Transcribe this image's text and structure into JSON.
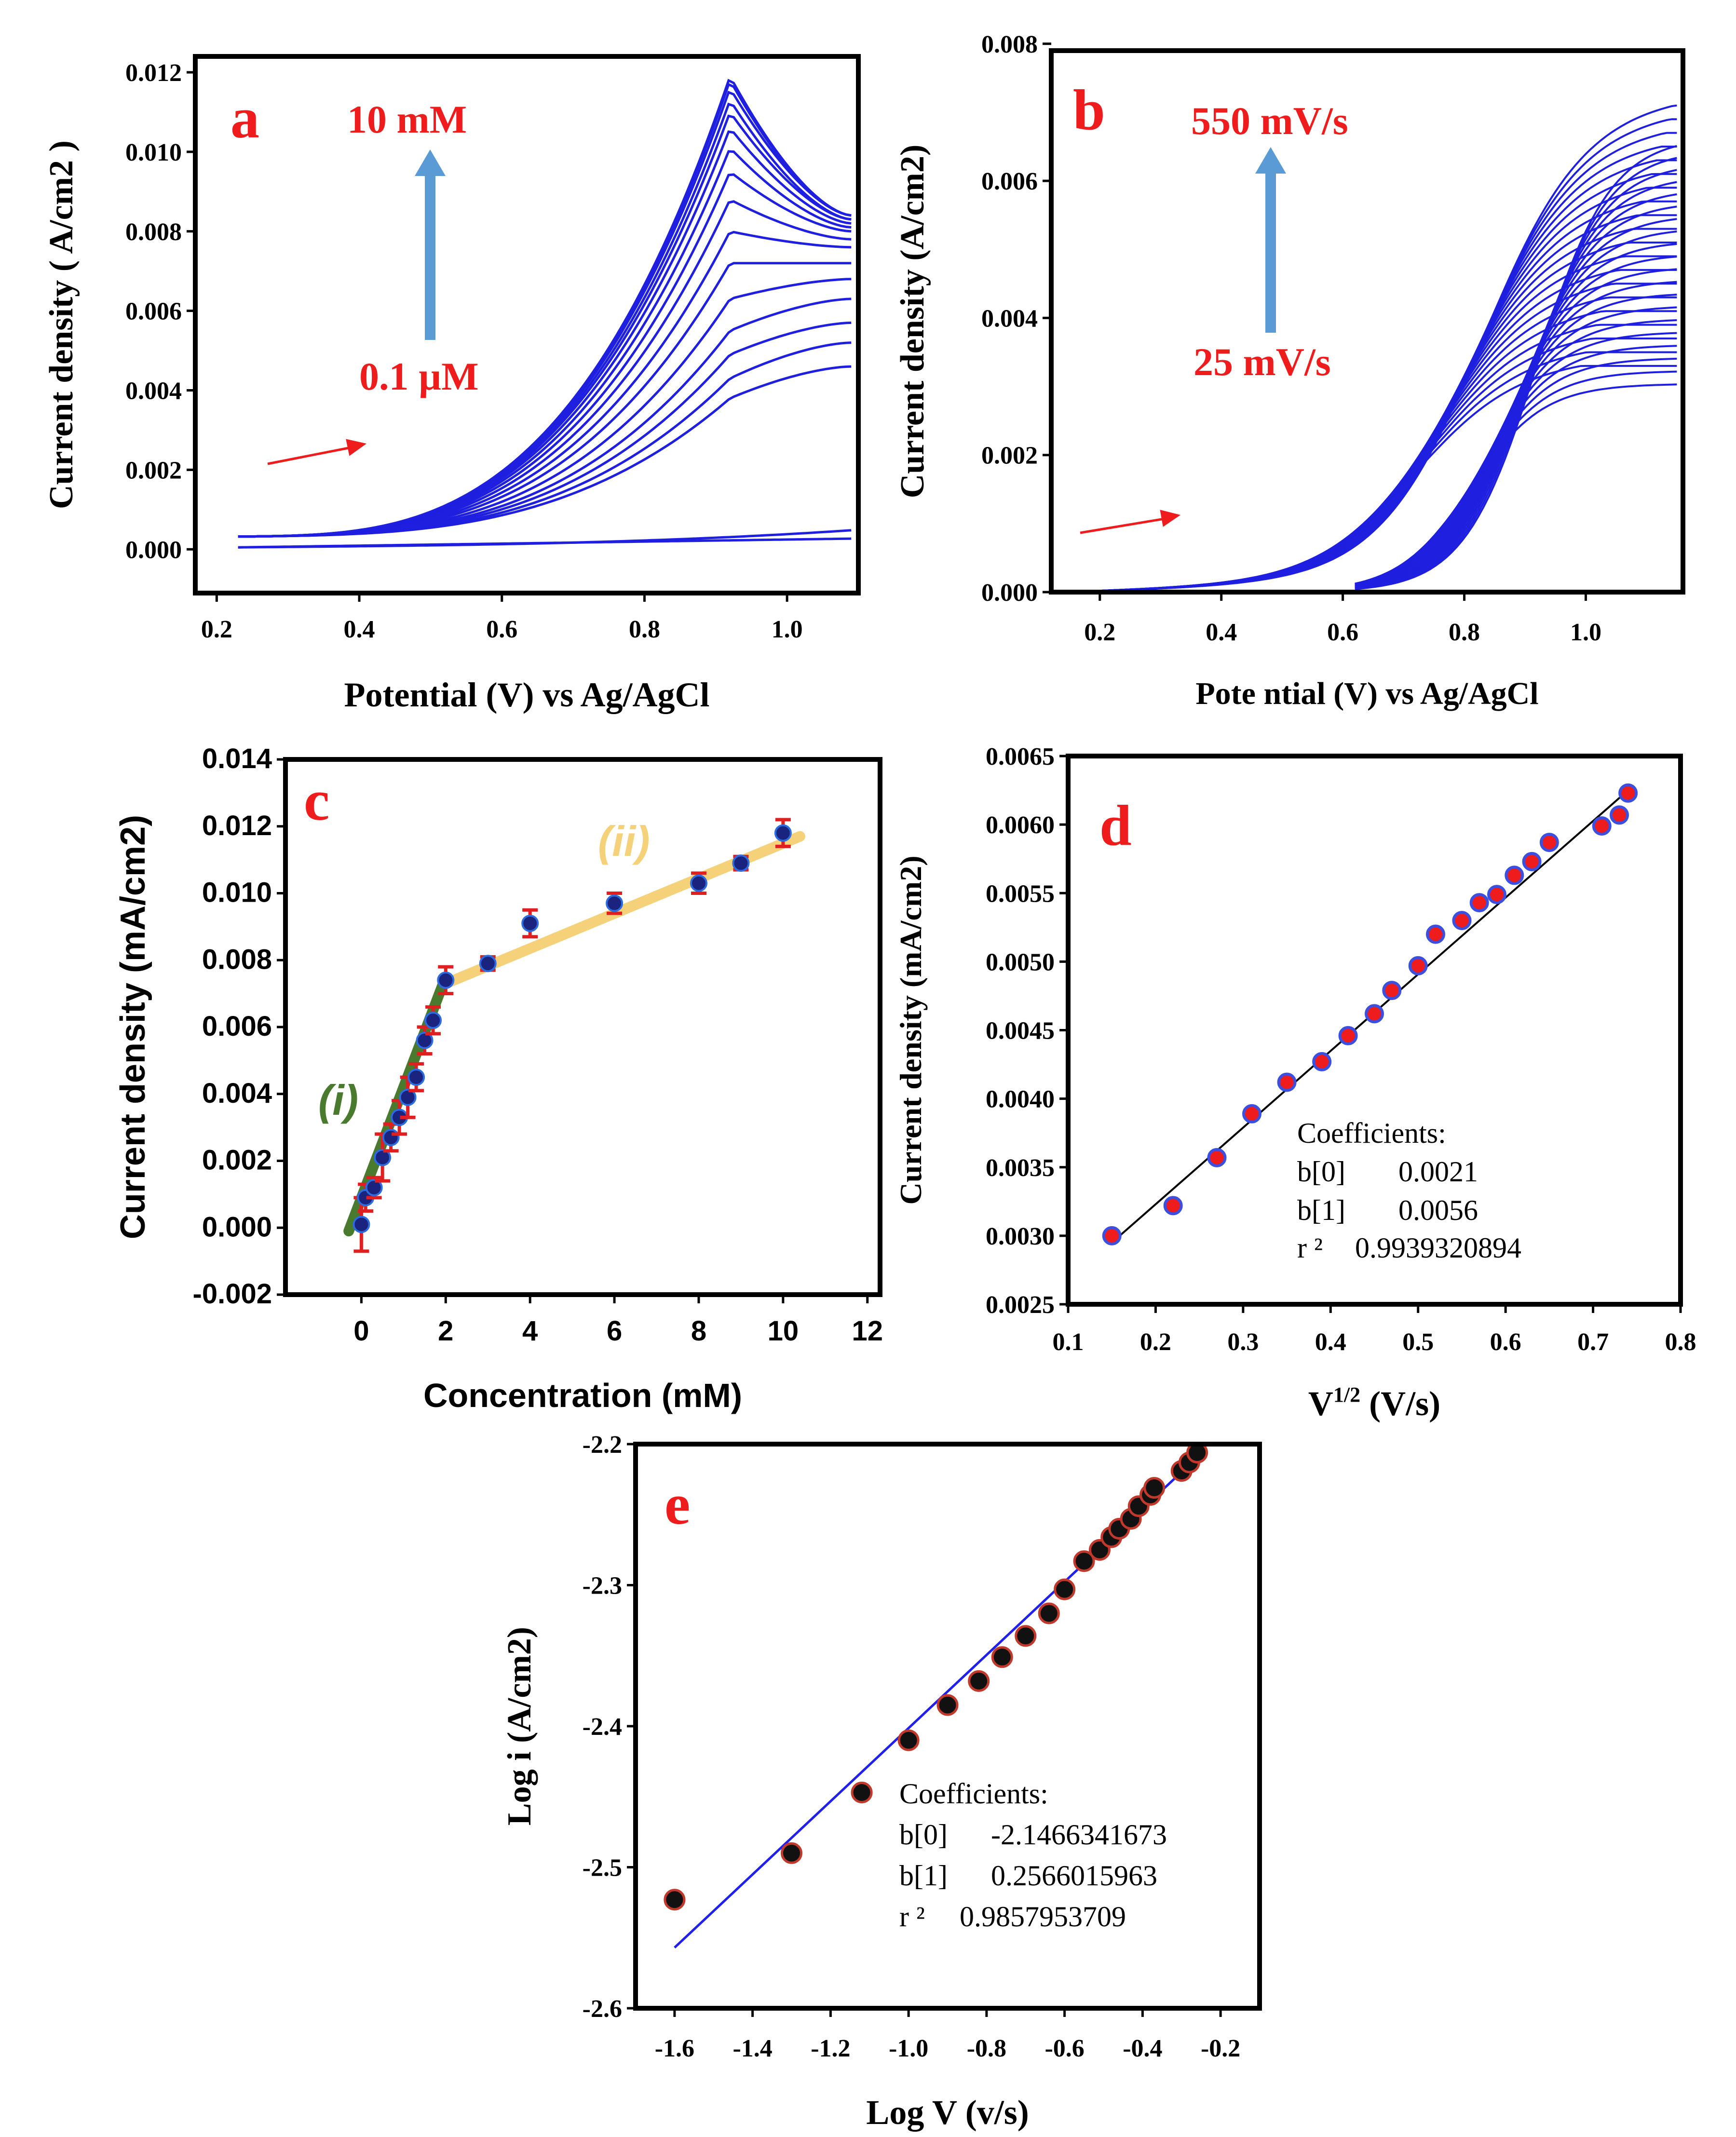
{
  "chart_data": [
    {
      "panel": "a",
      "type": "line",
      "title": "",
      "xlabel": "Potential (V) vs Ag/AgCl",
      "ylabel": "Current density ( A/cm2 )",
      "xlim": [
        0.17,
        1.1
      ],
      "ylim": [
        -0.0011,
        0.0124
      ],
      "xticks": [
        "0.2",
        "0.4",
        "0.6",
        "0.8",
        "1.0"
      ],
      "yticks": [
        "0.000",
        "0.002",
        "0.004",
        "0.006",
        "0.008",
        "0.010",
        "0.012"
      ],
      "annotations": {
        "panel_label": "a",
        "top": "10 mM",
        "bottom": "0.1 µM"
      },
      "color": "#1f1fe0",
      "series": {
        "x_start": 0.23,
        "x_end": 1.09,
        "peak_x": 0.92,
        "peak_currents": [
          0.00018,
          0.00027,
          0.0038,
          0.0043,
          0.0049,
          0.0055,
          0.0063,
          0.0072,
          0.008,
          0.0088,
          0.0095,
          0.0101,
          0.0106,
          0.011,
          0.0113,
          0.0116,
          0.0118,
          0.0119
        ],
        "end_currents": [
          0.00095,
          0.0006,
          0.0046,
          0.0052,
          0.0057,
          0.0063,
          0.0068,
          0.0072,
          0.0076,
          0.0078,
          0.008,
          0.0081,
          0.0082,
          0.0083,
          0.0083,
          0.0084,
          0.0084,
          0.0084
        ]
      }
    },
    {
      "panel": "b",
      "type": "line",
      "title": "",
      "xlabel": "Pote ntial (V) vs Ag/AgCl",
      "ylabel": "Current density (A/cm2)",
      "xlim": [
        0.12,
        1.16
      ],
      "ylim": [
        0,
        0.0079
      ],
      "xticks": [
        "0.2",
        "0.4",
        "0.6",
        "0.8",
        "1.0"
      ],
      "yticks": [
        "0.000",
        "0.002",
        "0.004",
        "0.006",
        "0.008"
      ],
      "annotations": {
        "panel_label": "b",
        "top": "550 mV/s",
        "bottom": "25 mV/s"
      },
      "color": "#1f1fe0",
      "series": {
        "x_start": 0.15,
        "x_end": 1.15,
        "plateau_currents": [
          0.0032,
          0.0034,
          0.0036,
          0.0038,
          0.004,
          0.0042,
          0.0044,
          0.0046,
          0.0048,
          0.005,
          0.0052,
          0.0054,
          0.0056,
          0.0058,
          0.006,
          0.0062,
          0.0064,
          0.0066,
          0.0068,
          0.007
        ]
      }
    },
    {
      "panel": "c",
      "type": "scatter",
      "title": "",
      "xlabel": "Concentration (mM)",
      "ylabel": "Current density (mA/cm2)",
      "xlim": [
        -1.8,
        12.3
      ],
      "ylim": [
        -0.002,
        0.014
      ],
      "xticks": [
        "0",
        "2",
        "4",
        "6",
        "8",
        "10",
        "12"
      ],
      "yticks": [
        "-0.002",
        "0.000",
        "0.002",
        "0.004",
        "0.006",
        "0.008",
        "0.010",
        "0.012",
        "0.014"
      ],
      "annotations": {
        "panel_label": "c",
        "region_i": "(i)",
        "region_ii": "(ii)"
      },
      "points": [
        {
          "x": 0.0,
          "y": 0.0001,
          "err": 0.0008
        },
        {
          "x": 0.1,
          "y": 0.0009,
          "err": 0.0004
        },
        {
          "x": 0.3,
          "y": 0.0012,
          "err": 0.0003
        },
        {
          "x": 0.5,
          "y": 0.0021,
          "err": 0.0007
        },
        {
          "x": 0.7,
          "y": 0.0027,
          "err": 0.0004
        },
        {
          "x": 0.9,
          "y": 0.0033,
          "err": 0.0005
        },
        {
          "x": 1.1,
          "y": 0.0039,
          "err": 0.0006
        },
        {
          "x": 1.3,
          "y": 0.0045,
          "err": 0.0004
        },
        {
          "x": 1.5,
          "y": 0.0056,
          "err": 0.0004
        },
        {
          "x": 1.7,
          "y": 0.0062,
          "err": 0.0004
        },
        {
          "x": 2.0,
          "y": 0.0074,
          "err": 0.0004
        },
        {
          "x": 3.0,
          "y": 0.0079,
          "err": 0.0002
        },
        {
          "x": 4.0,
          "y": 0.0091,
          "err": 0.0004
        },
        {
          "x": 6.0,
          "y": 0.0097,
          "err": 0.0003
        },
        {
          "x": 8.0,
          "y": 0.0103,
          "err": 0.0003
        },
        {
          "x": 9.0,
          "y": 0.0109,
          "err": 0.0002
        },
        {
          "x": 10.0,
          "y": 0.0118,
          "err": 0.0004
        }
      ],
      "fit_i": {
        "x": [
          -0.3,
          2.0
        ],
        "y": [
          -0.0001,
          0.0075
        ],
        "color": "#4a7a2e"
      },
      "fit_ii": {
        "x": [
          2.0,
          10.4
        ],
        "y": [
          0.0073,
          0.0117
        ],
        "color": "#f5d27a"
      }
    },
    {
      "panel": "d",
      "type": "scatter",
      "title": "",
      "xlabel": "V1/2 (V/s)",
      "ylabel": "Current density (mA/cm2)",
      "xlim": [
        0.1,
        0.8
      ],
      "ylim": [
        0.0025,
        0.0065
      ],
      "xticks": [
        "0.1",
        "0.2",
        "0.3",
        "0.4",
        "0.5",
        "0.6",
        "0.7",
        "0.8"
      ],
      "yticks": [
        "0.0025",
        "0.0030",
        "0.0035",
        "0.0040",
        "0.0045",
        "0.0050",
        "0.0055",
        "0.0060",
        "0.0065"
      ],
      "annotations": {
        "panel_label": "d"
      },
      "points_x": [
        0.15,
        0.22,
        0.27,
        0.31,
        0.35,
        0.39,
        0.42,
        0.45,
        0.47,
        0.5,
        0.52,
        0.55,
        0.57,
        0.59,
        0.61,
        0.63,
        0.65,
        0.71,
        0.73,
        0.74
      ],
      "points_y": [
        0.003,
        0.00322,
        0.00357,
        0.00389,
        0.00412,
        0.00427,
        0.00446,
        0.00462,
        0.00479,
        0.00497,
        0.0052,
        0.0053,
        0.00543,
        0.00549,
        0.00563,
        0.00573,
        0.00587,
        0.00599,
        0.00607,
        0.00623
      ],
      "fit": {
        "x": [
          0.15,
          0.74
        ],
        "y": [
          0.00295,
          0.00625
        ]
      },
      "coefficients": {
        "heading": "Coefficients:",
        "b0_label": "b[0]",
        "b0": "0.0021",
        "b1_label": "b[1]",
        "b1": "0.0056",
        "r2_label": "r ²",
        "r2": "0.9939320894"
      }
    },
    {
      "panel": "e",
      "type": "scatter",
      "title": "",
      "xlabel": "Log V (v/s)",
      "ylabel": "Log i (A/cm2)",
      "xlim": [
        -1.7,
        -0.1
      ],
      "ylim": [
        -2.6,
        -2.2
      ],
      "xticks": [
        "-1.6",
        "-1.4",
        "-1.2",
        "-1.0",
        "-0.8",
        "-0.6",
        "-0.4",
        "-0.2"
      ],
      "yticks": [
        "-2.2",
        "-2.3",
        "-2.4",
        "-2.5",
        "-2.6"
      ],
      "annotations": {
        "panel_label": "e"
      },
      "points_x": [
        -1.6,
        -1.3,
        -1.12,
        -1.0,
        -0.9,
        -0.82,
        -0.76,
        -0.7,
        -0.64,
        -0.6,
        -0.55,
        -0.51,
        -0.48,
        -0.46,
        -0.43,
        -0.41,
        -0.38,
        -0.37,
        -0.3,
        -0.28,
        -0.26
      ],
      "points_y": [
        -2.523,
        -2.49,
        -2.447,
        -2.41,
        -2.385,
        -2.368,
        -2.351,
        -2.336,
        -2.32,
        -2.303,
        -2.283,
        -2.275,
        -2.266,
        -2.26,
        -2.253,
        -2.244,
        -2.236,
        -2.231,
        -2.219,
        -2.213,
        -2.206
      ],
      "fit": {
        "x": [
          -1.6,
          -0.27
        ],
        "y": [
          -2.557,
          -2.212
        ]
      },
      "coefficients": {
        "heading": "Coefficients:",
        "b0_label": "b[0]",
        "b0": "-2.1466341673",
        "b1_label": "b[1]",
        "b1": "0.2566015963",
        "r2_label": "r ²",
        "r2": "0.9857953709"
      }
    }
  ]
}
